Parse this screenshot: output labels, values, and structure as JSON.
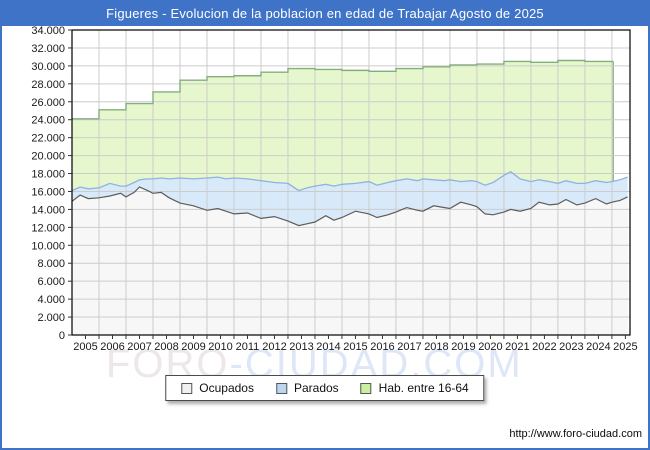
{
  "window": {
    "title": "Figueres - Evolucion de la poblacion en edad de Trabajar Agosto de 2025"
  },
  "watermark": {
    "left": "FORO",
    "right": "-CIUDAD.COM"
  },
  "footer": {
    "url": "http://www.foro-ciudad.com"
  },
  "legend": {
    "items": [
      {
        "label": "Ocupados",
        "color": "#f0f0f0"
      },
      {
        "label": "Parados",
        "color": "#bcd6f0"
      },
      {
        "label": "Hab. entre 16-64",
        "color": "#c9ef9f"
      }
    ]
  },
  "colors": {
    "titlebar": "#3e73c8",
    "grid": "#cccccc",
    "plot_border": "#000000",
    "axis_text": "#1a1a1a",
    "hab_fill": "#e7f7cd",
    "hab_stroke": "#83af7e",
    "parados_fill": "#d8e9f9",
    "parados_stroke": "#8fb2e2",
    "ocupados_fill": "#f7f7f7",
    "ocupados_stroke": "#5c5c5c"
  },
  "chart_data": {
    "type": "area",
    "title": "Figueres - Evolucion de la poblacion en edad de Trabajar Agosto de 2025",
    "x_range": [
      2005.0,
      2025.67
    ],
    "ylim": [
      0,
      34000
    ],
    "y_tick_step": 2000,
    "grid": true,
    "legend_position": "bottom-center",
    "y_tick_labels": [
      "0",
      "2.000",
      "4.000",
      "6.000",
      "8.000",
      "10.000",
      "12.000",
      "14.000",
      "16.000",
      "18.000",
      "20.000",
      "22.000",
      "24.000",
      "26.000",
      "28.000",
      "30.000",
      "32.000",
      "34.000"
    ],
    "x_tick_years": [
      "2005",
      "2006",
      "2007",
      "2008",
      "2009",
      "2010",
      "2011",
      "2012",
      "2013",
      "2014",
      "2015",
      "2016",
      "2017",
      "2018",
      "2019",
      "2020",
      "2021",
      "2022",
      "2023",
      "2024",
      "2025"
    ],
    "x": [
      2005.0,
      2005.3,
      2005.6,
      2006.0,
      2006.4,
      2006.8,
      2007.0,
      2007.3,
      2007.5,
      2007.8,
      2008.0,
      2008.3,
      2008.6,
      2009.0,
      2009.5,
      2010.0,
      2010.4,
      2010.7,
      2011.0,
      2011.5,
      2012.0,
      2012.5,
      2013.0,
      2013.4,
      2013.7,
      2014.0,
      2014.4,
      2014.7,
      2015.0,
      2015.5,
      2016.0,
      2016.3,
      2016.7,
      2017.0,
      2017.4,
      2017.8,
      2018.0,
      2018.4,
      2018.8,
      2019.0,
      2019.4,
      2019.8,
      2020.0,
      2020.3,
      2020.6,
      2021.0,
      2021.25,
      2021.6,
      2022.0,
      2022.3,
      2022.7,
      2023.0,
      2023.3,
      2023.7,
      2024.0,
      2024.4,
      2024.8,
      2025.0,
      2025.3,
      2025.58
    ],
    "series": [
      {
        "name": "Hab. entre 16-64",
        "render": "step-area-yearly",
        "years": [
          2005,
          2006,
          2007,
          2008,
          2009,
          2010,
          2011,
          2012,
          2013,
          2014,
          2015,
          2016,
          2017,
          2018,
          2019,
          2020,
          2021,
          2022,
          2023,
          2024
        ],
        "values": [
          24100,
          25100,
          25800,
          27100,
          28400,
          28800,
          28900,
          29300,
          29700,
          29600,
          29500,
          29400,
          29700,
          29900,
          30100,
          30200,
          30500,
          30400,
          30600,
          30500
        ],
        "ends_at": 2025.05
      },
      {
        "name": "Parados",
        "render": "area-stacked-on-ocupados",
        "values": [
          1200,
          900,
          1100,
          1100,
          1400,
          800,
          1200,
          1100,
          800,
          1300,
          1600,
          1600,
          2100,
          2800,
          3000,
          3600,
          3500,
          3600,
          4000,
          3800,
          4200,
          3800,
          4200,
          3900,
          4000,
          4000,
          3500,
          3800,
          3700,
          3100,
          3600,
          3600,
          3600,
          3500,
          3200,
          3300,
          3600,
          2900,
          3000,
          3200,
          2300,
          2700,
          2800,
          3200,
          3600,
          4100,
          4200,
          3600,
          3000,
          2500,
          2600,
          2300,
          2100,
          2400,
          2200,
          2000,
          2400,
          2300,
          2300,
          2200
        ]
      },
      {
        "name": "Ocupados",
        "render": "area",
        "values": [
          14900,
          15600,
          15200,
          15300,
          15500,
          15800,
          15400,
          15900,
          16500,
          16100,
          15800,
          15900,
          15300,
          14700,
          14400,
          13900,
          14100,
          13800,
          13500,
          13600,
          13000,
          13200,
          12700,
          12200,
          12400,
          12600,
          13300,
          12800,
          13100,
          13800,
          13500,
          13100,
          13400,
          13700,
          14200,
          13900,
          13800,
          14400,
          14200,
          14100,
          14800,
          14500,
          14300,
          13500,
          13400,
          13700,
          14000,
          13800,
          14100,
          14800,
          14500,
          14600,
          15100,
          14500,
          14700,
          15200,
          14600,
          14800,
          15000,
          15400
        ]
      }
    ]
  }
}
